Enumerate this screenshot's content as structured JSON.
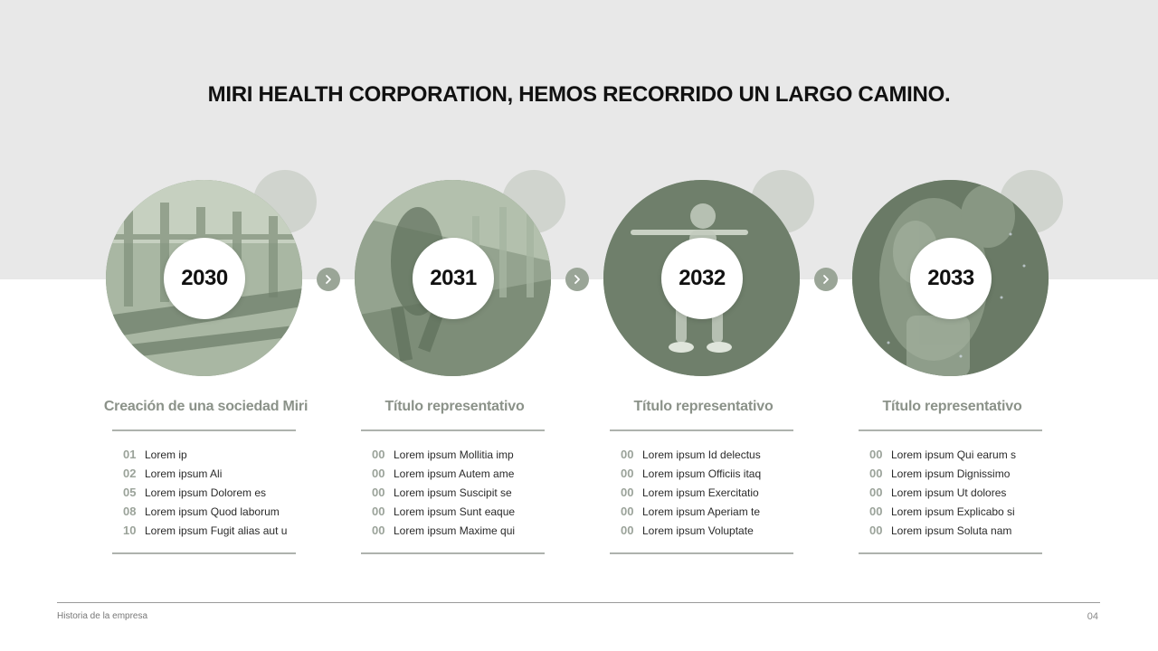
{
  "slide": {
    "headline": "MIRI HEALTH CORPORATION, HEMOS RECORRIDO UN LARGO CAMINO.",
    "footer_left": "Historia de la empresa",
    "page_number": "04"
  },
  "colors": {
    "top_band": "#e8e8e8",
    "accent_green": "#7f8f7c",
    "title_grey": "#8b9289",
    "arrow": "#9aa597"
  },
  "milestones": [
    {
      "year": "2030",
      "title": "Creación de una sociedad Miri",
      "image": "treadmills-photo",
      "items": [
        {
          "num": "01",
          "text": "Lorem ip"
        },
        {
          "num": "02",
          "text": "Lorem ipsum Ali"
        },
        {
          "num": "05",
          "text": "Lorem ipsum Dolorem es"
        },
        {
          "num": "08",
          "text": "Lorem ipsum Quod laborum"
        },
        {
          "num": "10",
          "text": "Lorem ipsum Fugit alias aut u"
        }
      ]
    },
    {
      "year": "2031",
      "title": "Título representativo",
      "image": "runner-photo",
      "items": [
        {
          "num": "00",
          "text": "Lorem ipsum Mollitia imp"
        },
        {
          "num": "00",
          "text": "Lorem ipsum Autem ame"
        },
        {
          "num": "00",
          "text": "Lorem ipsum Suscipit se"
        },
        {
          "num": "00",
          "text": "Lorem ipsum Sunt eaque"
        },
        {
          "num": "00",
          "text": "Lorem ipsum Maxime qui"
        }
      ]
    },
    {
      "year": "2032",
      "title": "Título representativo",
      "image": "squat-photo",
      "items": [
        {
          "num": "00",
          "text": "Lorem ipsum Id delectus"
        },
        {
          "num": "00",
          "text": "Lorem ipsum Officiis itaq"
        },
        {
          "num": "00",
          "text": "Lorem ipsum Exercitatio"
        },
        {
          "num": "00",
          "text": "Lorem ipsum Aperiam te"
        },
        {
          "num": "00",
          "text": "Lorem ipsum Voluptate"
        }
      ]
    },
    {
      "year": "2033",
      "title": "Título representativo",
      "image": "athlete-photo",
      "items": [
        {
          "num": "00",
          "text": "Lorem ipsum Qui earum s"
        },
        {
          "num": "00",
          "text": "Lorem ipsum Dignissimo"
        },
        {
          "num": "00",
          "text": "Lorem ipsum Ut dolores"
        },
        {
          "num": "00",
          "text": "Lorem ipsum Explicabo si"
        },
        {
          "num": "00",
          "text": "Lorem ipsum Soluta nam"
        }
      ]
    }
  ]
}
